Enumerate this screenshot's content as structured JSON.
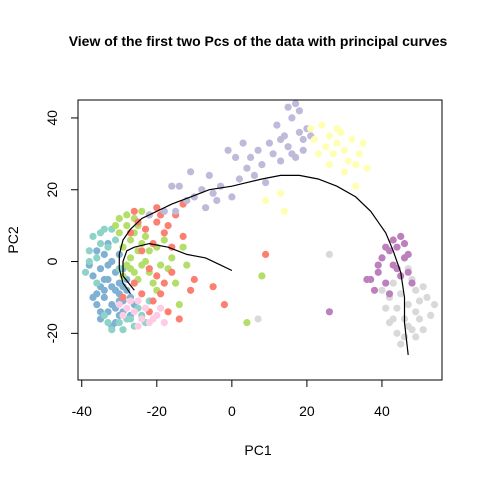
{
  "chart_data": {
    "type": "scatter",
    "title": "View of the first two Pcs of the data with principal curves",
    "xlabel": "PC1",
    "ylabel": "PC2",
    "xlim": [
      -41,
      56
    ],
    "ylim": [
      -33,
      45
    ],
    "xticks": [
      -40,
      -20,
      0,
      20,
      40
    ],
    "yticks": [
      -20,
      0,
      20,
      40
    ],
    "grid": false,
    "legend": "none",
    "colors": {
      "teal": "#8DD3C7",
      "yellow": "#FFFFB3",
      "lavender": "#BEBADA",
      "salmon": "#FB8072",
      "blue": "#80B1D3",
      "lime": "#B3DE69",
      "pink": "#FCCDE5",
      "grey": "#D9D9D9",
      "purple": "#BC80BD",
      "curve": "#000000"
    },
    "series": [
      {
        "color_key": "blue",
        "points": [
          [
            -35,
            -7
          ],
          [
            -33,
            -5
          ],
          [
            -31,
            -8
          ],
          [
            -34,
            -10
          ],
          [
            -32,
            -12
          ],
          [
            -30,
            -6
          ],
          [
            -36,
            -9
          ],
          [
            -29,
            -11
          ],
          [
            -33,
            -14
          ],
          [
            -31,
            -3
          ],
          [
            -35,
            -2
          ],
          [
            -28,
            -8
          ],
          [
            -30,
            -15
          ],
          [
            -32,
            0
          ],
          [
            -34,
            2
          ],
          [
            -37,
            -4
          ],
          [
            -29,
            -2
          ],
          [
            -27,
            -10
          ],
          [
            -36,
            -12
          ],
          [
            -33,
            -1
          ],
          [
            -31,
            -13
          ],
          [
            -28,
            -5
          ],
          [
            -30,
            -9
          ],
          [
            -35,
            -14
          ],
          [
            -32,
            -7
          ],
          [
            -34,
            -5
          ],
          [
            -29,
            -7
          ],
          [
            -26,
            -12
          ],
          [
            -31,
            -17
          ],
          [
            -36,
            3
          ],
          [
            -33,
            5
          ],
          [
            -38,
            -1
          ],
          [
            -30,
            2
          ],
          [
            -27,
            -15
          ],
          [
            -35,
            -16
          ],
          [
            -32,
            -18
          ],
          [
            -29,
            -14
          ],
          [
            -34,
            -8
          ],
          [
            -37,
            -10
          ],
          [
            -30,
            -11
          ]
        ]
      },
      {
        "color_key": "teal",
        "points": [
          [
            -37,
            7
          ],
          [
            -35,
            5
          ],
          [
            -34,
            9
          ],
          [
            -36,
            1
          ],
          [
            -38,
            3
          ],
          [
            -33,
            4
          ],
          [
            -31,
            6
          ],
          [
            -30,
            -2
          ],
          [
            -28,
            -16
          ],
          [
            -26,
            -18
          ],
          [
            -24,
            -15
          ],
          [
            -32,
            -19
          ],
          [
            -29,
            -19
          ],
          [
            -25,
            -13
          ],
          [
            -33,
            -17
          ],
          [
            -36,
            -6
          ],
          [
            -39,
            -3
          ],
          [
            -35,
            8
          ],
          [
            -32,
            9
          ],
          [
            -22,
            -11
          ],
          [
            -27,
            -16
          ],
          [
            -30,
            -17
          ],
          [
            -23,
            -17
          ],
          [
            -38,
            0
          ],
          [
            -34,
            -15
          ]
        ]
      },
      {
        "color_key": "lime",
        "points": [
          [
            -29,
            4
          ],
          [
            -27,
            6
          ],
          [
            -25,
            3
          ],
          [
            -28,
            -1
          ],
          [
            -26,
            -3
          ],
          [
            -24,
            5
          ],
          [
            -30,
            8
          ],
          [
            -28,
            10
          ],
          [
            -26,
            12
          ],
          [
            -23,
            7
          ],
          [
            -27,
            1
          ],
          [
            -25,
            -5
          ],
          [
            -29,
            -4
          ],
          [
            -31,
            10
          ],
          [
            -22,
            3
          ],
          [
            -24,
            -1
          ],
          [
            -26,
            8
          ],
          [
            -28,
            13
          ],
          [
            -20,
            4
          ],
          [
            -22,
            -3
          ],
          [
            -19,
            -1
          ],
          [
            -17,
            -2
          ],
          [
            -16,
            1
          ],
          [
            -18,
            6
          ],
          [
            -21,
            -6
          ],
          [
            -14,
            -12
          ],
          [
            -27,
            -2
          ],
          [
            -25,
            10
          ],
          [
            -30,
            12
          ],
          [
            -23,
            0
          ],
          [
            -20,
            -8
          ],
          [
            -15,
            -6
          ],
          [
            -13,
            4
          ],
          [
            -12,
            -1
          ],
          [
            -24,
            14
          ],
          [
            4,
            -17
          ],
          [
            8,
            -4
          ]
        ]
      },
      {
        "color_key": "salmon",
        "points": [
          [
            -27,
            8
          ],
          [
            -25,
            11
          ],
          [
            -22,
            13
          ],
          [
            -20,
            11
          ],
          [
            -18,
            8
          ],
          [
            -21,
            5
          ],
          [
            -23,
            9
          ],
          [
            -19,
            13
          ],
          [
            -17,
            10
          ],
          [
            -24,
            3
          ],
          [
            -22,
            -2
          ],
          [
            -20,
            -4
          ],
          [
            -18,
            -6
          ],
          [
            -16,
            -3
          ],
          [
            -19,
            -9
          ],
          [
            -21,
            -11
          ],
          [
            -17,
            -14
          ],
          [
            -14,
            -16
          ],
          [
            -26,
            -6
          ],
          [
            -24,
            -9
          ],
          [
            -22,
            -14
          ],
          [
            -15,
            13
          ],
          [
            -13,
            7
          ],
          [
            -16,
            4
          ],
          [
            -29,
            -10
          ],
          [
            -11,
            -8
          ],
          [
            -10,
            -5
          ],
          [
            -13,
            16
          ],
          [
            -20,
            15
          ],
          [
            9,
            2
          ],
          [
            -2,
            -12
          ],
          [
            -5,
            -7
          ],
          [
            -26,
            14
          ]
        ]
      },
      {
        "color_key": "pink",
        "points": [
          [
            -30,
            -12
          ],
          [
            -28,
            -13
          ],
          [
            -26,
            -14
          ],
          [
            -25,
            -11
          ],
          [
            -23,
            -13
          ],
          [
            -27,
            -11
          ],
          [
            -24,
            -16
          ],
          [
            -22,
            -17
          ],
          [
            -20,
            -15
          ],
          [
            -19,
            -13
          ],
          [
            -29,
            -15
          ],
          [
            -25,
            -18
          ],
          [
            -21,
            -16
          ],
          [
            -18,
            -17
          ]
        ]
      },
      {
        "color_key": "lavender",
        "points": [
          [
            12,
            38
          ],
          [
            14,
            35
          ],
          [
            16,
            40
          ],
          [
            18,
            36
          ],
          [
            10,
            33
          ],
          [
            15,
            32
          ],
          [
            17,
            29
          ],
          [
            19,
            34
          ],
          [
            13,
            28
          ],
          [
            11,
            30
          ],
          [
            8,
            27
          ],
          [
            6,
            24
          ],
          [
            4,
            26
          ],
          [
            1,
            29
          ],
          [
            -1,
            31
          ],
          [
            3,
            33
          ],
          [
            2,
            23
          ],
          [
            -3,
            21
          ],
          [
            -5,
            19
          ],
          [
            -8,
            20
          ],
          [
            -10,
            18
          ],
          [
            -12,
            17
          ],
          [
            -15,
            14
          ],
          [
            -18,
            14
          ],
          [
            -22,
            13
          ],
          [
            18,
            42
          ],
          [
            20,
            37
          ],
          [
            15,
            43
          ],
          [
            7,
            31
          ],
          [
            9,
            22
          ],
          [
            -4,
            17
          ],
          [
            -6,
            24
          ],
          [
            -11,
            25
          ],
          [
            -14,
            21
          ],
          [
            0,
            18
          ],
          [
            13,
            34
          ],
          [
            16,
            30
          ],
          [
            19,
            31
          ],
          [
            5,
            29
          ],
          [
            17,
            44
          ],
          [
            21,
            35
          ],
          [
            -16,
            21
          ],
          [
            -7,
            15
          ]
        ]
      },
      {
        "color_key": "yellow",
        "points": [
          [
            24,
            38
          ],
          [
            26,
            35
          ],
          [
            28,
            33
          ],
          [
            30,
            31
          ],
          [
            32,
            34
          ],
          [
            27,
            30
          ],
          [
            25,
            32
          ],
          [
            29,
            36
          ],
          [
            31,
            28
          ],
          [
            33,
            27
          ],
          [
            35,
            33
          ],
          [
            23,
            30
          ],
          [
            26,
            27
          ],
          [
            30,
            25
          ],
          [
            28,
            37
          ],
          [
            34,
            30
          ],
          [
            36,
            26
          ],
          [
            22,
            34
          ],
          [
            33,
            21
          ],
          [
            13,
            19
          ],
          [
            9,
            17
          ],
          [
            14,
            14
          ],
          [
            21,
            37
          ]
        ]
      },
      {
        "color_key": "grey",
        "points": [
          [
            43,
            -6
          ],
          [
            45,
            -9
          ],
          [
            47,
            -12
          ],
          [
            49,
            -8
          ],
          [
            44,
            -13
          ],
          [
            46,
            -16
          ],
          [
            48,
            -5
          ],
          [
            50,
            -11
          ],
          [
            42,
            -10
          ],
          [
            45,
            -4
          ],
          [
            47,
            -18
          ],
          [
            49,
            -14
          ],
          [
            51,
            -7
          ],
          [
            43,
            -16
          ],
          [
            46,
            -21
          ],
          [
            48,
            -19
          ],
          [
            50,
            -16
          ],
          [
            44,
            -20
          ],
          [
            52,
            -10
          ],
          [
            41,
            -13
          ],
          [
            47,
            -2
          ],
          [
            53,
            -15
          ],
          [
            42,
            -17
          ],
          [
            45,
            -23
          ],
          [
            51,
            -19
          ],
          [
            54,
            -12
          ],
          [
            40,
            -8
          ],
          [
            49,
            -21
          ],
          [
            26,
            2
          ],
          [
            7,
            -16
          ]
        ]
      },
      {
        "color_key": "purple",
        "points": [
          [
            39,
            -3
          ],
          [
            41,
            -6
          ],
          [
            43,
            -1
          ],
          [
            45,
            -4
          ],
          [
            40,
            1
          ],
          [
            42,
            3
          ],
          [
            44,
            -2
          ],
          [
            46,
            1
          ],
          [
            38,
            -8
          ],
          [
            41,
            4
          ],
          [
            43,
            6
          ],
          [
            47,
            -3
          ],
          [
            48,
            -6
          ],
          [
            44,
            4
          ],
          [
            39,
            -1
          ],
          [
            42,
            -9
          ],
          [
            46,
            5
          ],
          [
            37,
            -5
          ],
          [
            47,
            2
          ],
          [
            45,
            7
          ],
          [
            26,
            -14
          ],
          [
            36,
            -5
          ]
        ]
      }
    ],
    "curves": [
      {
        "points": [
          [
            -27,
            -9
          ],
          [
            -29,
            -6
          ],
          [
            -30,
            -2
          ],
          [
            -30,
            2
          ],
          [
            -29,
            6
          ],
          [
            -27,
            9
          ],
          [
            -24,
            12
          ],
          [
            -20,
            14
          ],
          [
            -16,
            16
          ],
          [
            -11,
            18
          ],
          [
            -6,
            20
          ],
          [
            0,
            21
          ],
          [
            4,
            22
          ],
          [
            8,
            23
          ],
          [
            13,
            24
          ],
          [
            18,
            24
          ],
          [
            23,
            23
          ],
          [
            28,
            21
          ],
          [
            33,
            18
          ],
          [
            37,
            14
          ],
          [
            41,
            8
          ],
          [
            43,
            3
          ],
          [
            45,
            -3
          ],
          [
            46,
            -10
          ],
          [
            46,
            -17
          ],
          [
            47,
            -26
          ]
        ]
      },
      {
        "points": [
          [
            -26,
            -8
          ],
          [
            -29,
            -4
          ],
          [
            -29,
            0
          ],
          [
            -28,
            3
          ],
          [
            -26,
            4
          ],
          [
            -22,
            5
          ],
          [
            -17,
            4
          ],
          [
            -12,
            2
          ],
          [
            -7,
            1
          ],
          [
            -3,
            -1
          ],
          [
            0,
            -2.5
          ]
        ]
      }
    ]
  }
}
